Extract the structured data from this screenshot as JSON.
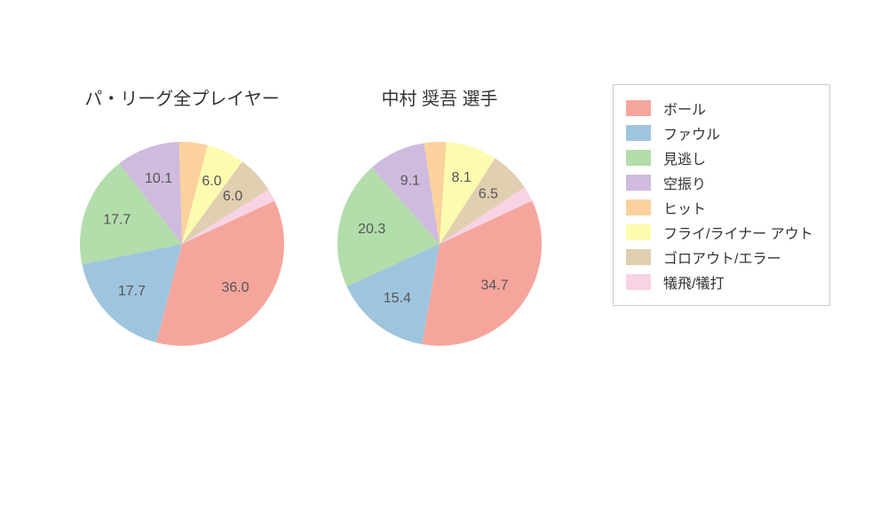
{
  "background_color": "#ffffff",
  "title_fontsize": 20,
  "label_fontsize": 16,
  "label_color": "#555555",
  "label_threshold": 6.0,
  "categories": [
    {
      "key": "ball",
      "label": "ボール",
      "color": "#f6a59c"
    },
    {
      "key": "foul",
      "label": "ファウル",
      "color": "#9fc5de"
    },
    {
      "key": "look",
      "label": "見逃し",
      "color": "#b3ddab"
    },
    {
      "key": "swing_miss",
      "label": "空振り",
      "color": "#cfbbdd"
    },
    {
      "key": "hit",
      "label": "ヒット",
      "color": "#fbd19d"
    },
    {
      "key": "fly_liner",
      "label": "フライ/ライナー アウト",
      "color": "#fcfbaf"
    },
    {
      "key": "ground_err",
      "label": "ゴロアウト/エラー",
      "color": "#e0cfb0"
    },
    {
      "key": "sac",
      "label": "犠飛/犠打",
      "color": "#f7d3e4"
    }
  ],
  "charts": [
    {
      "id": "league",
      "title": "パ・リーグ全プレイヤー",
      "values": [
        36.0,
        17.7,
        17.7,
        10.1,
        4.5,
        6.0,
        6.0,
        2.0
      ]
    },
    {
      "id": "player",
      "title": "中村 奨吾  選手",
      "values": [
        34.7,
        15.4,
        20.3,
        9.1,
        3.5,
        8.1,
        6.5,
        2.4
      ]
    }
  ],
  "pie_start_angle_deg": 65,
  "legend_border_color": "#cccccc"
}
